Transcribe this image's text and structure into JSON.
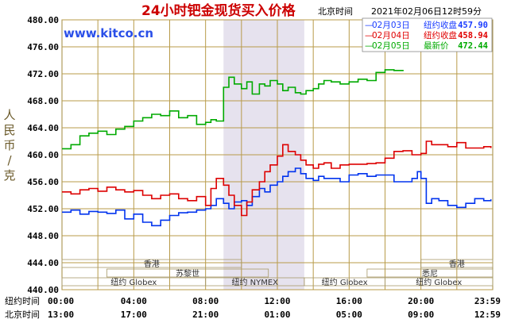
{
  "chart_data": {
    "type": "line",
    "title": "24小时钯金现货买入价格",
    "timestamp_label": "北京时间",
    "timestamp": "2021年02月06日12时59分",
    "watermark": "www.kitco.cn",
    "ylabel": "人民币/克",
    "ylim": [
      440,
      480
    ],
    "y_ticks": [
      "440.00",
      "444.00",
      "448.00",
      "452.00",
      "456.00",
      "460.00",
      "464.00",
      "468.00",
      "472.00",
      "476.00",
      "480.00"
    ],
    "x_row_labels": [
      "纽约时间",
      "北京时间"
    ],
    "x_ticks_ny": [
      "00:00",
      "04:00",
      "08:00",
      "12:00",
      "16:00",
      "20:00",
      "23:59"
    ],
    "x_ticks_bj": [
      "13:00",
      "17:00",
      "21:00",
      "01:00",
      "05:00",
      "09:00",
      "12:59"
    ],
    "highlight_range_hours": [
      9.0,
      13.5
    ],
    "legend": [
      {
        "prefix": "—",
        "date": "02月03日",
        "label": "纽约收盘",
        "value": "457.90",
        "color": "#1a3cff"
      },
      {
        "prefix": "—",
        "date": "02月04日",
        "label": "纽约收盘",
        "value": "458.94",
        "color": "#e00000"
      },
      {
        "prefix": "—",
        "date": "02月05日",
        "label": "最新价",
        "value": "472.44",
        "color": "#00aa00"
      }
    ],
    "sessions": [
      {
        "label": "香港",
        "start": 0,
        "end": 10,
        "row": 0
      },
      {
        "label": "香港",
        "start": 20,
        "end": 24,
        "row": 0
      },
      {
        "label": "苏黎世",
        "start": 2.5,
        "end": 11.5,
        "row": 1
      },
      {
        "label": "悉尼",
        "start": 17,
        "end": 24,
        "row": 1
      },
      {
        "label": "纽约 Globex",
        "start": 0,
        "end": 8,
        "row": 2
      },
      {
        "label": "纽约 NYMEX",
        "start": 8,
        "end": 13.5,
        "row": 2
      },
      {
        "label": "纽约 Globex",
        "start": 13.5,
        "end": 18,
        "row": 2
      },
      {
        "label": "纽约 Globex",
        "start": 18,
        "end": 24,
        "row": 2
      }
    ],
    "series": [
      {
        "color": "#0033ee",
        "x": [
          0,
          0.5,
          1.0,
          1.5,
          2.0,
          2.5,
          3.0,
          3.5,
          4.0,
          4.5,
          5.0,
          5.5,
          6.0,
          6.5,
          7.0,
          7.5,
          8.0,
          8.3,
          8.6,
          9.0,
          9.3,
          9.6,
          10.0,
          10.3,
          10.6,
          11.0,
          11.3,
          11.6,
          12.0,
          12.3,
          12.6,
          13.0,
          13.3,
          13.6,
          14.0,
          14.3,
          14.6,
          15.0,
          15.5,
          16.0,
          16.5,
          17.0,
          17.5,
          18.0,
          18.5,
          19.0,
          19.5,
          19.8,
          20.0,
          20.3,
          20.6,
          21.0,
          21.5,
          22.0,
          22.5,
          23.0,
          23.5,
          23.9
        ],
        "y": [
          451.5,
          451.8,
          451.2,
          451.6,
          451.5,
          451.3,
          451.8,
          450.5,
          451.2,
          450.0,
          449.5,
          450.3,
          451.0,
          451.4,
          451.5,
          451.8,
          452.0,
          452.5,
          453.5,
          452.8,
          452.0,
          453.0,
          453.2,
          452.5,
          453.8,
          455.0,
          454.5,
          455.5,
          456.0,
          456.8,
          457.5,
          458.0,
          457.2,
          456.5,
          456.2,
          456.8,
          456.5,
          456.5,
          456.0,
          457.0,
          457.2,
          456.8,
          457.0,
          457.0,
          456.0,
          456.0,
          456.5,
          457.5,
          456.5,
          452.8,
          453.5,
          453.2,
          452.5,
          452.2,
          452.8,
          453.5,
          453.2,
          453.4
        ]
      },
      {
        "color": "#dd0000",
        "x": [
          0,
          0.5,
          1.0,
          1.5,
          2.0,
          2.5,
          3.0,
          3.5,
          4.0,
          4.5,
          5.0,
          5.5,
          6.0,
          6.5,
          7.0,
          7.5,
          8.0,
          8.3,
          8.6,
          9.0,
          9.3,
          9.6,
          10.0,
          10.3,
          10.6,
          11.0,
          11.3,
          11.6,
          12.0,
          12.3,
          12.6,
          13.0,
          13.3,
          13.6,
          14.0,
          14.3,
          14.6,
          15.0,
          15.5,
          16.0,
          16.5,
          17.0,
          17.5,
          18.0,
          18.5,
          19.0,
          19.5,
          20.0,
          20.3,
          20.6,
          21.0,
          21.5,
          22.0,
          22.5,
          23.0,
          23.5,
          23.9
        ],
        "y": [
          454.5,
          454.2,
          454.8,
          455.0,
          454.6,
          455.2,
          454.8,
          454.5,
          454.7,
          454.0,
          453.5,
          454.0,
          454.2,
          453.5,
          453.2,
          453.8,
          452.5,
          455.0,
          456.5,
          455.5,
          454.0,
          452.5,
          451.0,
          453.0,
          454.8,
          456.0,
          457.5,
          458.5,
          459.8,
          461.5,
          460.5,
          460.0,
          459.2,
          458.5,
          458.0,
          458.6,
          458.8,
          458.0,
          458.5,
          458.6,
          458.6,
          458.7,
          458.8,
          459.5,
          460.5,
          460.6,
          460.0,
          460.2,
          462.0,
          461.5,
          461.5,
          461.2,
          461.8,
          461.0,
          461.0,
          461.2,
          461.0
        ]
      },
      {
        "color": "#00aa00",
        "x": [
          0,
          0.5,
          1.0,
          1.5,
          2.0,
          2.5,
          3.0,
          3.5,
          4.0,
          4.5,
          5.0,
          5.5,
          6.0,
          6.5,
          7.0,
          7.5,
          8.0,
          8.3,
          8.6,
          9.0,
          9.3,
          9.6,
          10.0,
          10.3,
          10.6,
          11.0,
          11.3,
          11.6,
          12.0,
          12.3,
          12.6,
          13.0,
          13.3,
          13.6,
          14.0,
          14.3,
          14.6,
          15.0,
          15.5,
          16.0,
          16.5,
          17.0,
          17.5,
          18.0,
          18.5,
          19.0
        ],
        "y": [
          460.9,
          461.5,
          462.8,
          463.2,
          463.5,
          463.0,
          463.8,
          464.2,
          465.0,
          465.5,
          466.0,
          465.8,
          466.5,
          465.5,
          465.8,
          464.5,
          464.8,
          465.2,
          465.0,
          470.0,
          471.5,
          470.5,
          469.8,
          470.8,
          469.0,
          470.5,
          470.2,
          471.0,
          470.5,
          469.5,
          470.0,
          469.2,
          469.0,
          469.5,
          469.8,
          470.5,
          471.0,
          470.8,
          470.5,
          470.8,
          471.2,
          471.0,
          472.2,
          472.6,
          472.5,
          472.4
        ]
      }
    ]
  }
}
